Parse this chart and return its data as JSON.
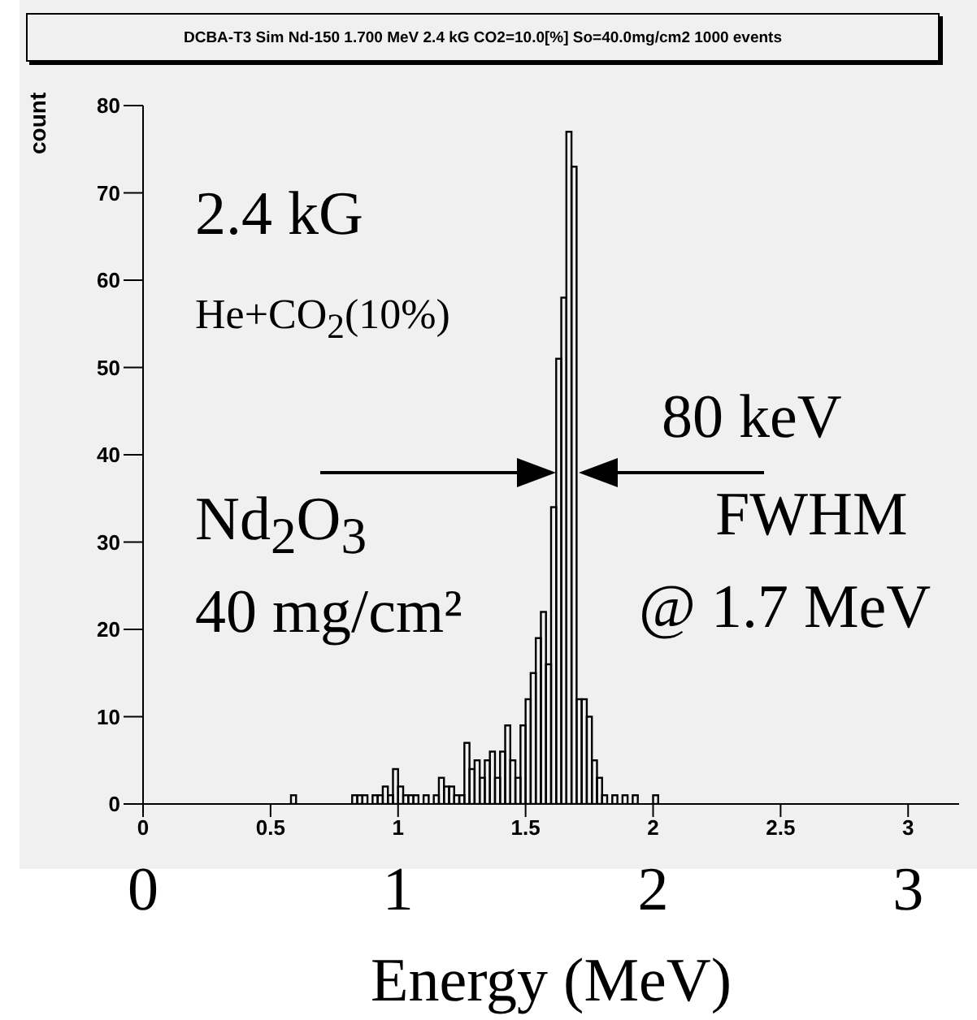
{
  "chart_data": {
    "type": "histogram",
    "title": "DCBA-T3 Sim Nd-150 1.700 MeV 2.4 kG CO2=10.0[%] So=40.0mg/cm2  1000 events",
    "xlabel": "Energy (MeV)",
    "ylabel": "count",
    "bins": [
      0.56,
      0.58,
      0.6,
      0.62,
      0.64,
      0.66,
      0.68,
      0.7,
      0.72,
      0.74,
      0.76,
      0.78,
      0.8,
      0.82,
      0.84,
      0.86,
      0.88,
      0.9,
      0.92,
      0.94,
      0.96,
      0.98,
      1.0,
      1.02,
      1.04,
      1.06,
      1.08,
      1.1,
      1.12,
      1.14,
      1.16,
      1.18,
      1.2,
      1.22,
      1.24,
      1.26,
      1.28,
      1.3,
      1.32,
      1.34,
      1.36,
      1.38,
      1.4,
      1.42,
      1.44,
      1.46,
      1.48,
      1.5,
      1.52,
      1.54,
      1.56,
      1.58,
      1.6,
      1.62,
      1.64,
      1.66,
      1.68,
      1.7,
      1.72,
      1.74,
      1.76,
      1.78,
      1.8,
      1.82,
      1.84,
      1.86,
      1.88,
      1.9,
      1.92,
      1.94,
      1.96,
      1.98,
      2.0,
      2.02
    ],
    "values": [
      0,
      1,
      0,
      0,
      0,
      0,
      0,
      0,
      0,
      0,
      0,
      0,
      0,
      1,
      1,
      1,
      0,
      1,
      1,
      2,
      1,
      4,
      2,
      1,
      1,
      1,
      0,
      1,
      0,
      1,
      3,
      2,
      2,
      1,
      1,
      7,
      4,
      5,
      3,
      5,
      6,
      3,
      6,
      9,
      5,
      3,
      9,
      12,
      15,
      19,
      22,
      16,
      34,
      51,
      58,
      77,
      73,
      12,
      12,
      10,
      5,
      3,
      1,
      0,
      1,
      0,
      1,
      0,
      1,
      0,
      0,
      0,
      1
    ],
    "color": "#000000",
    "xlim": [
      0,
      3.2
    ],
    "xticks": [
      0,
      0.5,
      1,
      1.5,
      2,
      2.5,
      3
    ],
    "x2lim": [
      0,
      3.2
    ],
    "x2ticks": [
      0,
      1,
      2,
      3
    ],
    "ylim": [
      0,
      80
    ],
    "yticks": [
      0,
      10,
      20,
      30,
      40,
      50,
      60,
      70,
      80
    ],
    "annotations": [
      "2.4 kG",
      "He+CO$_{2}$(10%)",
      "80 keV",
      "FWHM",
      "@ 1.7 MeV",
      "Nd$_{2}$O$_{3}$",
      "40 mg/cm²"
    ],
    "grid": false,
    "legend": false
  }
}
